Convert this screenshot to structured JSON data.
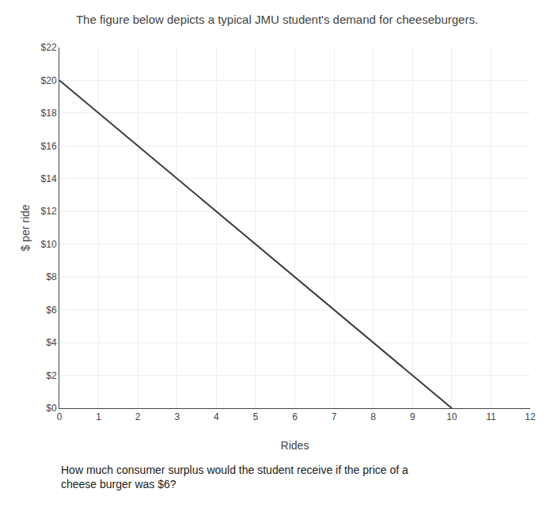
{
  "chart_data": {
    "type": "line",
    "title": "The figure below depicts a typical JMU student's demand for cheeseburgers.",
    "xlabel": "Rides",
    "ylabel": "$ per ride",
    "x": [
      0,
      10
    ],
    "values": [
      20,
      0
    ],
    "color": "#3a3a3a",
    "xlim": [
      0,
      12
    ],
    "ylim": [
      0,
      22
    ],
    "xticks": [
      0,
      1,
      2,
      3,
      4,
      5,
      6,
      7,
      8,
      9,
      10,
      11,
      12
    ],
    "yticks": [
      {
        "value": 0,
        "label": "$0"
      },
      {
        "value": 2,
        "label": "$2"
      },
      {
        "value": 4,
        "label": "$4"
      },
      {
        "value": 6,
        "label": "$6"
      },
      {
        "value": 8,
        "label": "$8"
      },
      {
        "value": 10,
        "label": "$10"
      },
      {
        "value": 12,
        "label": "$12"
      },
      {
        "value": 14,
        "label": "$14"
      },
      {
        "value": 16,
        "label": "$16"
      },
      {
        "value": 18,
        "label": "$18"
      },
      {
        "value": 20,
        "label": "$20"
      },
      {
        "value": 22,
        "label": "$22"
      }
    ],
    "grid": true,
    "annotations": [
      {
        "text": "How much consumer surplus would the student receive if the price of a\ncheese burger was $6?"
      }
    ]
  }
}
